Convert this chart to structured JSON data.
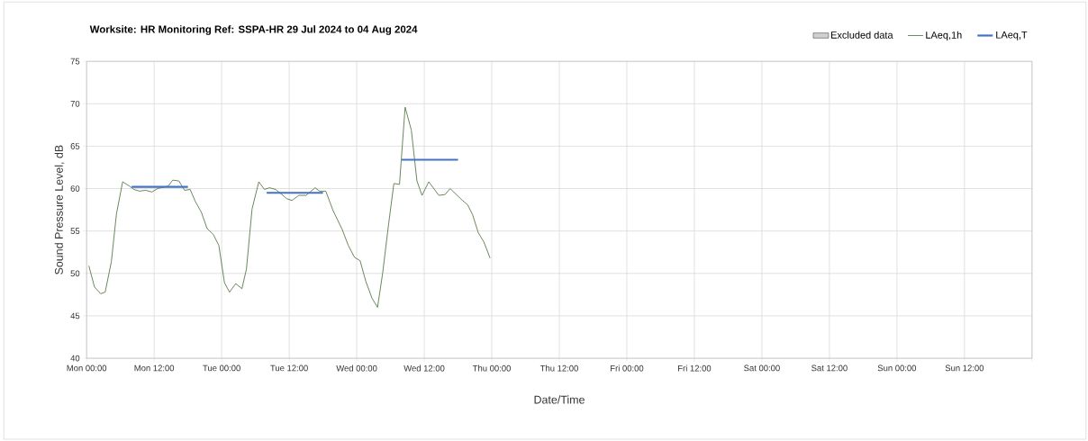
{
  "chart_data": {
    "type": "line",
    "title": "Worksite: HR   Monitoring Ref: SSPA-HR     29 Jul 2024 to 04 Aug 2024",
    "xlabel": "Date/Time",
    "ylabel": "Sound Pressure Level, dB",
    "xlim": [
      "2024-07-29T00:00",
      "2024-08-05T00:00"
    ],
    "ylim": [
      40,
      75
    ],
    "xticks": [
      {
        "value": "2024-07-29T00:00",
        "label": "Mon 00:00"
      },
      {
        "value": "2024-07-29T12:00",
        "label": "Mon 12:00"
      },
      {
        "value": "2024-07-30T00:00",
        "label": "Tue 00:00"
      },
      {
        "value": "2024-07-30T12:00",
        "label": "Tue 12:00"
      },
      {
        "value": "2024-07-31T00:00",
        "label": "Wed 00:00"
      },
      {
        "value": "2024-07-31T12:00",
        "label": "Wed 12:00"
      },
      {
        "value": "2024-08-01T00:00",
        "label": "Thu 00:00"
      },
      {
        "value": "2024-08-01T12:00",
        "label": "Thu 12:00"
      },
      {
        "value": "2024-08-02T00:00",
        "label": "Fri 00:00"
      },
      {
        "value": "2024-08-02T12:00",
        "label": "Fri 12:00"
      },
      {
        "value": "2024-08-03T00:00",
        "label": "Sat 00:00"
      },
      {
        "value": "2024-08-03T12:00",
        "label": "Sat 12:00"
      },
      {
        "value": "2024-08-04T00:00",
        "label": "Sun 00:00"
      },
      {
        "value": "2024-08-04T12:00",
        "label": "Sun 12:00"
      },
      {
        "value": "2024-08-05T00:00",
        "label": null
      }
    ],
    "yticks": [
      40,
      45,
      50,
      55,
      60,
      65,
      70,
      75
    ],
    "grid": true,
    "legend": "top right",
    "series": [
      {
        "name": "Excluded data",
        "type": "area",
        "color": "#d0d0d0"
      },
      {
        "name": "LAeq,1h",
        "color": "#5a7a4a",
        "x": [
          "2024-07-29T00:24",
          "2024-07-29T01:24",
          "2024-07-29T02:30",
          "2024-07-29T03:18",
          "2024-07-29T04:24",
          "2024-07-29T05:18",
          "2024-07-29T06:24",
          "2024-07-29T07:36",
          "2024-07-29T08:24",
          "2024-07-29T09:24",
          "2024-07-29T10:30",
          "2024-07-29T11:36",
          "2024-07-29T12:36",
          "2024-07-29T14:30",
          "2024-07-29T15:18",
          "2024-07-29T16:24",
          "2024-07-29T17:24",
          "2024-07-29T18:24",
          "2024-07-29T19:18",
          "2024-07-29T20:24",
          "2024-07-29T21:24",
          "2024-07-29T22:30",
          "2024-07-29T23:30",
          "2024-07-30T00:30",
          "2024-07-30T01:24",
          "2024-07-30T02:30",
          "2024-07-30T03:36",
          "2024-07-30T04:24",
          "2024-07-30T05:24",
          "2024-07-30T06:36",
          "2024-07-30T07:36",
          "2024-07-30T08:30",
          "2024-07-30T09:36",
          "2024-07-30T10:42",
          "2024-07-30T11:36",
          "2024-07-30T12:30",
          "2024-07-30T13:42",
          "2024-07-30T15:00",
          "2024-07-30T16:36",
          "2024-07-30T17:24",
          "2024-07-30T18:30",
          "2024-07-30T19:48",
          "2024-07-30T21:24",
          "2024-07-30T22:30",
          "2024-07-30T23:36",
          "2024-07-31T00:36",
          "2024-07-31T01:36",
          "2024-07-31T02:42",
          "2024-07-31T03:42",
          "2024-07-31T04:36",
          "2024-07-31T05:42",
          "2024-07-31T06:36",
          "2024-07-31T07:36",
          "2024-07-31T08:36",
          "2024-07-31T09:42",
          "2024-07-31T10:42",
          "2024-07-31T11:36",
          "2024-07-31T12:48",
          "2024-07-31T14:36",
          "2024-07-31T15:42",
          "2024-07-31T16:36",
          "2024-07-31T17:42",
          "2024-07-31T18:48",
          "2024-07-31T19:42",
          "2024-07-31T20:36",
          "2024-07-31T21:36",
          "2024-07-31T22:36",
          "2024-07-31T23:42"
        ],
        "values": [
          50.9,
          48.4,
          47.6,
          47.8,
          51.4,
          57.0,
          60.8,
          60.3,
          59.9,
          59.7,
          59.8,
          59.6,
          60.0,
          60.3,
          61.0,
          60.9,
          59.8,
          59.9,
          58.5,
          57.2,
          55.3,
          54.6,
          53.3,
          48.9,
          47.8,
          48.8,
          48.2,
          50.5,
          57.6,
          60.8,
          59.9,
          60.1,
          59.9,
          59.3,
          58.8,
          58.6,
          59.2,
          59.2,
          60.1,
          59.7,
          59.7,
          57.4,
          55.2,
          53.3,
          51.9,
          51.5,
          49.1,
          47.1,
          46.0,
          50.0,
          56.0,
          60.6,
          60.5,
          69.6,
          66.9,
          60.9,
          59.2,
          60.8,
          59.2,
          59.3,
          60.0,
          59.3,
          58.6,
          58.1,
          56.9,
          54.8,
          53.7,
          51.8
        ]
      },
      {
        "name": "LAeq,T",
        "type": "line",
        "color": "#4472c4",
        "x": [
          "2024-07-29T08:00",
          "2024-07-29T18:00",
          "2024-07-30T01:00",
          "2024-07-30T08:00",
          "2024-07-30T18:00",
          "2024-07-31T01:00",
          "2024-07-31T08:00",
          "2024-07-31T18:00"
        ],
        "values": [
          60.2,
          60.2,
          null,
          59.5,
          59.5,
          null,
          63.4,
          63.4
        ]
      }
    ]
  }
}
